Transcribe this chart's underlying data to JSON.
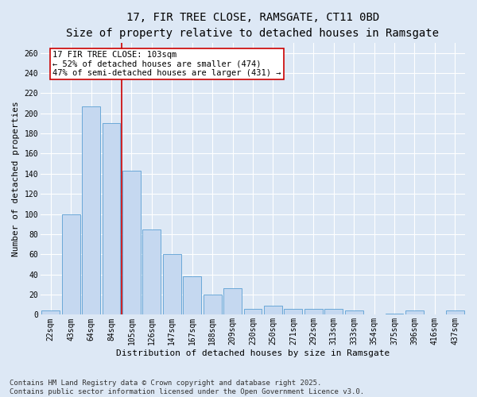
{
  "title": "17, FIR TREE CLOSE, RAMSGATE, CT11 0BD",
  "subtitle": "Size of property relative to detached houses in Ramsgate",
  "xlabel": "Distribution of detached houses by size in Ramsgate",
  "ylabel": "Number of detached properties",
  "bar_color": "#c5d8f0",
  "bar_edge_color": "#5a9fd4",
  "background_color": "#dde8f5",
  "grid_color": "#ffffff",
  "categories": [
    "22sqm",
    "43sqm",
    "64sqm",
    "84sqm",
    "105sqm",
    "126sqm",
    "147sqm",
    "167sqm",
    "188sqm",
    "209sqm",
    "230sqm",
    "250sqm",
    "271sqm",
    "292sqm",
    "313sqm",
    "333sqm",
    "354sqm",
    "375sqm",
    "396sqm",
    "416sqm",
    "437sqm"
  ],
  "values": [
    4,
    100,
    207,
    190,
    143,
    85,
    60,
    38,
    20,
    26,
    6,
    9,
    6,
    6,
    6,
    4,
    0,
    1,
    4,
    0,
    4
  ],
  "vline_color": "#cc0000",
  "annotation_text": "17 FIR TREE CLOSE: 103sqm\n← 52% of detached houses are smaller (474)\n47% of semi-detached houses are larger (431) →",
  "annotation_box_color": "#ffffff",
  "annotation_box_edge_color": "#cc0000",
  "ylim": [
    0,
    270
  ],
  "yticks": [
    0,
    20,
    40,
    60,
    80,
    100,
    120,
    140,
    160,
    180,
    200,
    220,
    240,
    260
  ],
  "footer": "Contains HM Land Registry data © Crown copyright and database right 2025.\nContains public sector information licensed under the Open Government Licence v3.0.",
  "title_fontsize": 10,
  "subtitle_fontsize": 9,
  "axis_label_fontsize": 8,
  "tick_fontsize": 7,
  "annotation_fontsize": 7.5,
  "footer_fontsize": 6.5
}
